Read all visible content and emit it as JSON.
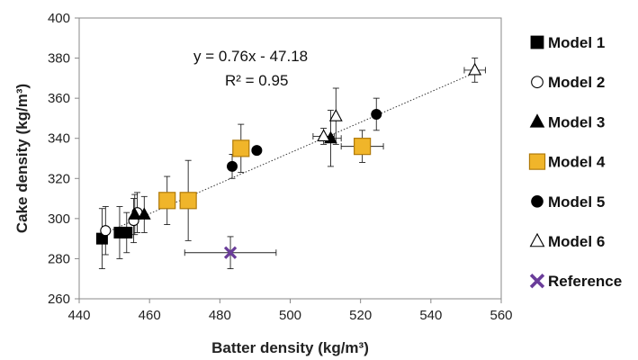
{
  "chart_data": {
    "type": "scatter",
    "xlabel": "Batter density (kg/m³)",
    "ylabel": "Cake density (kg/m³)",
    "xlim": [
      440,
      560
    ],
    "ylim": [
      260,
      400
    ],
    "x_ticks": [
      "440",
      "460",
      "480",
      "500",
      "520",
      "540",
      "560"
    ],
    "y_ticks": [
      "260",
      "280",
      "300",
      "320",
      "340",
      "360",
      "380",
      "400"
    ],
    "grid": false,
    "legend_position": "right",
    "annotations": [
      "y = 0.76x - 47.18",
      "R² = 0.95"
    ],
    "trendline": {
      "slope": 0.76,
      "intercept": -47.18,
      "x_range": [
        447,
        553
      ],
      "style": "dotted"
    },
    "series": [
      {
        "name": "Model 1",
        "marker": "square",
        "color": "#000000",
        "marker_fill": "#000000",
        "points": [
          {
            "x": 446.5,
            "y": 290,
            "yerr": 15,
            "xerr": 0
          },
          {
            "x": 451.5,
            "y": 293,
            "yerr": 13,
            "xerr": 0
          },
          {
            "x": 453.5,
            "y": 293,
            "yerr": 10,
            "xerr": 0
          }
        ]
      },
      {
        "name": "Model 2",
        "marker": "circle-open",
        "color": "#000000",
        "marker_fill": "#ffffff",
        "points": [
          {
            "x": 447.5,
            "y": 294,
            "yerr": 12,
            "xerr": 0
          },
          {
            "x": 455.5,
            "y": 299,
            "yerr": 11,
            "xerr": 0
          },
          {
            "x": 456.5,
            "y": 303,
            "yerr": 10,
            "xerr": 0
          }
        ]
      },
      {
        "name": "Model 3",
        "marker": "triangle",
        "color": "#000000",
        "marker_fill": "#000000",
        "points": [
          {
            "x": 455.8,
            "y": 302,
            "yerr": 10,
            "xerr": 0
          },
          {
            "x": 458.5,
            "y": 302,
            "yerr": 9,
            "xerr": 0
          },
          {
            "x": 511.5,
            "y": 340,
            "yerr": 14,
            "xerr": 3
          }
        ]
      },
      {
        "name": "Model 4",
        "marker": "square-gold",
        "color": "#e6a517",
        "marker_fill": "#f0b52a",
        "points": [
          {
            "x": 465,
            "y": 309,
            "yerr": 12,
            "xerr": 0
          },
          {
            "x": 471,
            "y": 309,
            "yerr": 20,
            "xerr": 0
          },
          {
            "x": 486,
            "y": 335,
            "yerr": 12,
            "xerr": 0
          },
          {
            "x": 520.5,
            "y": 336,
            "yerr": 8,
            "xerr": 6
          }
        ]
      },
      {
        "name": "Model 5",
        "marker": "circle",
        "color": "#000000",
        "marker_fill": "#000000",
        "points": [
          {
            "x": 483.5,
            "y": 326,
            "yerr": 6,
            "xerr": 0
          },
          {
            "x": 490.5,
            "y": 334,
            "yerr": 0,
            "xerr": 0
          },
          {
            "x": 524.5,
            "y": 352,
            "yerr": 8,
            "xerr": 0
          }
        ]
      },
      {
        "name": "Model 6",
        "marker": "triangle-open",
        "color": "#000000",
        "marker_fill": "#ffffff",
        "points": [
          {
            "x": 509.5,
            "y": 341,
            "yerr": 4,
            "xerr": 3
          },
          {
            "x": 513,
            "y": 351,
            "yerr": 14,
            "xerr": 0
          },
          {
            "x": 552.5,
            "y": 374,
            "yerr": 6,
            "xerr": 3
          }
        ]
      },
      {
        "name": "Reference",
        "marker": "x",
        "color": "#6a3d9a",
        "marker_fill": "#6a3d9a",
        "points": [
          {
            "x": 483,
            "y": 283,
            "yerr": 8,
            "xerr": 13
          }
        ]
      }
    ]
  }
}
